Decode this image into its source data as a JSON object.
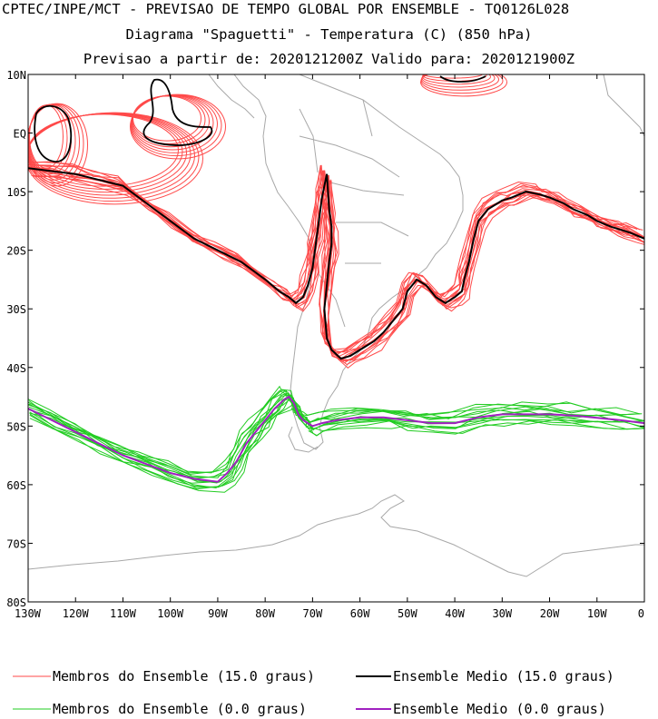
{
  "title": {
    "line1": "CPTEC/INPE/MCT - PREVISAO DE TEMPO GLOBAL POR ENSEMBLE - TQ0126L028",
    "line2": "Diagrama \"Spaguetti\" - Temperatura (C) (850 hPa)",
    "line3": "Previsao a partir de: 2020121200Z  Valido para: 2020121900Z"
  },
  "map": {
    "lon_range": [
      -130,
      0
    ],
    "lat_range": [
      -80,
      10
    ],
    "lat_ticks": [
      {
        "value": 10,
        "label": "10N"
      },
      {
        "value": 0,
        "label": "EQ"
      },
      {
        "value": -10,
        "label": "10S"
      },
      {
        "value": -20,
        "label": "20S"
      },
      {
        "value": -30,
        "label": "30S"
      },
      {
        "value": -40,
        "label": "40S"
      },
      {
        "value": -50,
        "label": "50S"
      },
      {
        "value": -60,
        "label": "60S"
      },
      {
        "value": -70,
        "label": "70S"
      },
      {
        "value": -80,
        "label": "80S"
      }
    ],
    "lon_ticks": [
      {
        "value": -130,
        "label": "130W"
      },
      {
        "value": -120,
        "label": "120W"
      },
      {
        "value": -110,
        "label": "110W"
      },
      {
        "value": -100,
        "label": "100W"
      },
      {
        "value": -90,
        "label": "90W"
      },
      {
        "value": -80,
        "label": "80W"
      },
      {
        "value": -70,
        "label": "70W"
      },
      {
        "value": -60,
        "label": "60W"
      },
      {
        "value": -50,
        "label": "50W"
      },
      {
        "value": -40,
        "label": "40W"
      },
      {
        "value": -30,
        "label": "30W"
      },
      {
        "value": -20,
        "label": "20W"
      },
      {
        "value": -10,
        "label": "10W"
      },
      {
        "value": 0,
        "label": "0"
      }
    ],
    "coastline_color": "#a8a8a8"
  },
  "legend": [
    {
      "label": "Membros do Ensemble (15.0 graus)",
      "color": "#ff4a4a",
      "kind": "member"
    },
    {
      "label": "Ensemble Medio (15.0 graus)",
      "color": "#000000",
      "kind": "mean"
    },
    {
      "label": "Membros do Ensemble (0.0 graus)",
      "color": "#22cc22",
      "kind": "member"
    },
    {
      "label": "Ensemble Medio (0.0 graus)",
      "color": "#a020c0",
      "kind": "mean"
    }
  ],
  "chart_data": {
    "type": "line",
    "series": [
      {
        "name": "Ensemble Medio (15.0 graus)",
        "color": "#000000",
        "lon": [
          -130,
          -125,
          -120,
          -115,
          -110,
          -105,
          -100,
          -95,
          -90,
          -85,
          -80,
          -77,
          -75,
          -73.5,
          -72,
          -71,
          -70,
          -69.5,
          -69,
          -68.5,
          -68,
          -67.5,
          -67,
          -66.5,
          -66,
          -66,
          -66.5,
          -67,
          -67.5,
          -67,
          -66,
          -64,
          -62,
          -60,
          -57,
          -55,
          -53,
          -51,
          -50,
          -48,
          -46,
          -44,
          -42,
          -40,
          -38.5,
          -38,
          -37,
          -36,
          -35,
          -33,
          -30,
          -28,
          -25,
          -22,
          -20,
          -17,
          -15,
          -12,
          -10,
          -7,
          -5,
          -3,
          0
        ],
        "lat": [
          -6,
          -6.5,
          -7,
          -8,
          -9,
          -12,
          -15,
          -18,
          -20,
          -22,
          -25,
          -27,
          -28,
          -29,
          -28,
          -26,
          -23,
          -20,
          -17,
          -14,
          -11,
          -9,
          -7,
          -13,
          -16,
          -19,
          -22,
          -26,
          -30,
          -35,
          -37,
          -38.5,
          -38,
          -37,
          -35.5,
          -34,
          -32,
          -30,
          -27,
          -25,
          -26,
          -28,
          -29,
          -28,
          -27,
          -25,
          -22,
          -18,
          -15,
          -13,
          -11.5,
          -11,
          -10,
          -10.5,
          -11,
          -12,
          -13,
          -14,
          -15,
          -16,
          -16.5,
          -17,
          -18
        ]
      },
      {
        "name": "Ensemble Medio (0.0 graus)",
        "color": "#a020c0",
        "lon": [
          -130,
          -125,
          -120,
          -115,
          -110,
          -105,
          -100,
          -95,
          -90,
          -88,
          -86,
          -84,
          -82,
          -80,
          -78,
          -76,
          -75,
          -74,
          -73,
          -72,
          -71,
          -70,
          -68,
          -65,
          -60,
          -55,
          -50,
          -45,
          -40,
          -35,
          -30,
          -25,
          -20,
          -15,
          -10,
          -5,
          0
        ],
        "lat": [
          -47,
          -49,
          -51,
          -53,
          -55,
          -56.5,
          -58,
          -59,
          -59.5,
          -58,
          -56,
          -53,
          -51,
          -49,
          -47,
          -45.5,
          -45,
          -46,
          -48,
          -49,
          -49.5,
          -50,
          -49.5,
          -49,
          -48.5,
          -48.5,
          -49,
          -49.5,
          -49.5,
          -48.5,
          -48,
          -48,
          -48,
          -48.2,
          -48.6,
          -49,
          -49.5
        ]
      }
    ]
  }
}
